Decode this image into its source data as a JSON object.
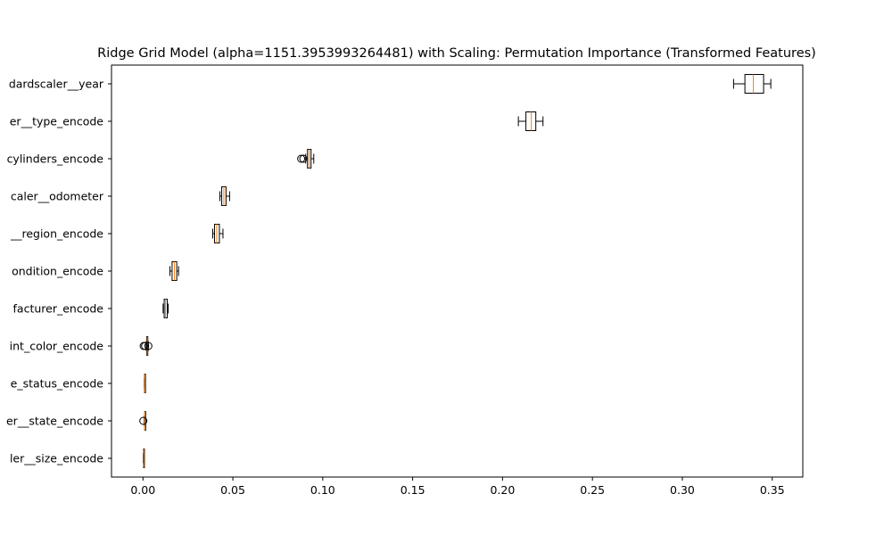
{
  "chart_data": {
    "type": "boxplot",
    "orientation": "horizontal",
    "title": "Ridge Grid Model (alpha=1151.3953993264481) with Scaling: Permutation Importance (Transformed Features)",
    "xlabel": "",
    "ylabel": "",
    "xlim": [
      -0.0175,
      0.367
    ],
    "xticks": [
      0.0,
      0.05,
      0.1,
      0.15,
      0.2,
      0.25,
      0.3,
      0.35
    ],
    "xtick_labels": [
      "0.00",
      "0.05",
      "0.10",
      "0.15",
      "0.20",
      "0.25",
      "0.30",
      "0.35"
    ],
    "grid": false,
    "colors": {
      "box_edge": "#000000",
      "median": "#ff7f0e"
    },
    "categories": [
      "dardscaler__year",
      "er__type_encode",
      "cylinders_encode",
      "caler__odometer",
      "__region_encode",
      "ondition_encode",
      "facturer_encode",
      "int_color_encode",
      "e_status_encode",
      "er__state_encode",
      "ler__size_encode"
    ],
    "boxes": [
      {
        "whislo": 0.3285,
        "q1": 0.3348,
        "med": 0.3395,
        "q3": 0.3452,
        "whishi": 0.3492,
        "fliers": []
      },
      {
        "whislo": 0.2088,
        "q1": 0.213,
        "med": 0.216,
        "q3": 0.2185,
        "whishi": 0.2225,
        "fliers": []
      },
      {
        "whislo": 0.0905,
        "q1": 0.0915,
        "med": 0.0925,
        "q3": 0.0935,
        "whishi": 0.095,
        "fliers": [
          0.088,
          0.0892
        ]
      },
      {
        "whislo": 0.0428,
        "q1": 0.0438,
        "med": 0.045,
        "q3": 0.0462,
        "whishi": 0.0482,
        "fliers": []
      },
      {
        "whislo": 0.0388,
        "q1": 0.0398,
        "med": 0.041,
        "q3": 0.0425,
        "whishi": 0.0445,
        "fliers": []
      },
      {
        "whislo": 0.015,
        "q1": 0.0162,
        "med": 0.0175,
        "q3": 0.0188,
        "whishi": 0.0198,
        "fliers": []
      },
      {
        "whislo": 0.0112,
        "q1": 0.0118,
        "med": 0.0125,
        "q3": 0.0135,
        "whishi": 0.014,
        "fliers": []
      },
      {
        "whislo": 0.0018,
        "q1": 0.0021,
        "med": 0.0024,
        "q3": 0.0027,
        "whishi": 0.003,
        "fliers": [
          0.0004,
          0.0012,
          0.003
        ]
      },
      {
        "whislo": 0.0008,
        "q1": 0.0009,
        "med": 0.001,
        "q3": 0.0011,
        "whishi": 0.0012,
        "fliers": []
      },
      {
        "whislo": 0.0008,
        "q1": 0.001,
        "med": 0.0011,
        "q3": 0.0012,
        "whishi": 0.0014,
        "fliers": [
          0.0002
        ]
      },
      {
        "whislo": 0.0002,
        "q1": 0.0003,
        "med": 0.0004,
        "q3": 0.0005,
        "whishi": 0.0006,
        "fliers": []
      }
    ]
  }
}
